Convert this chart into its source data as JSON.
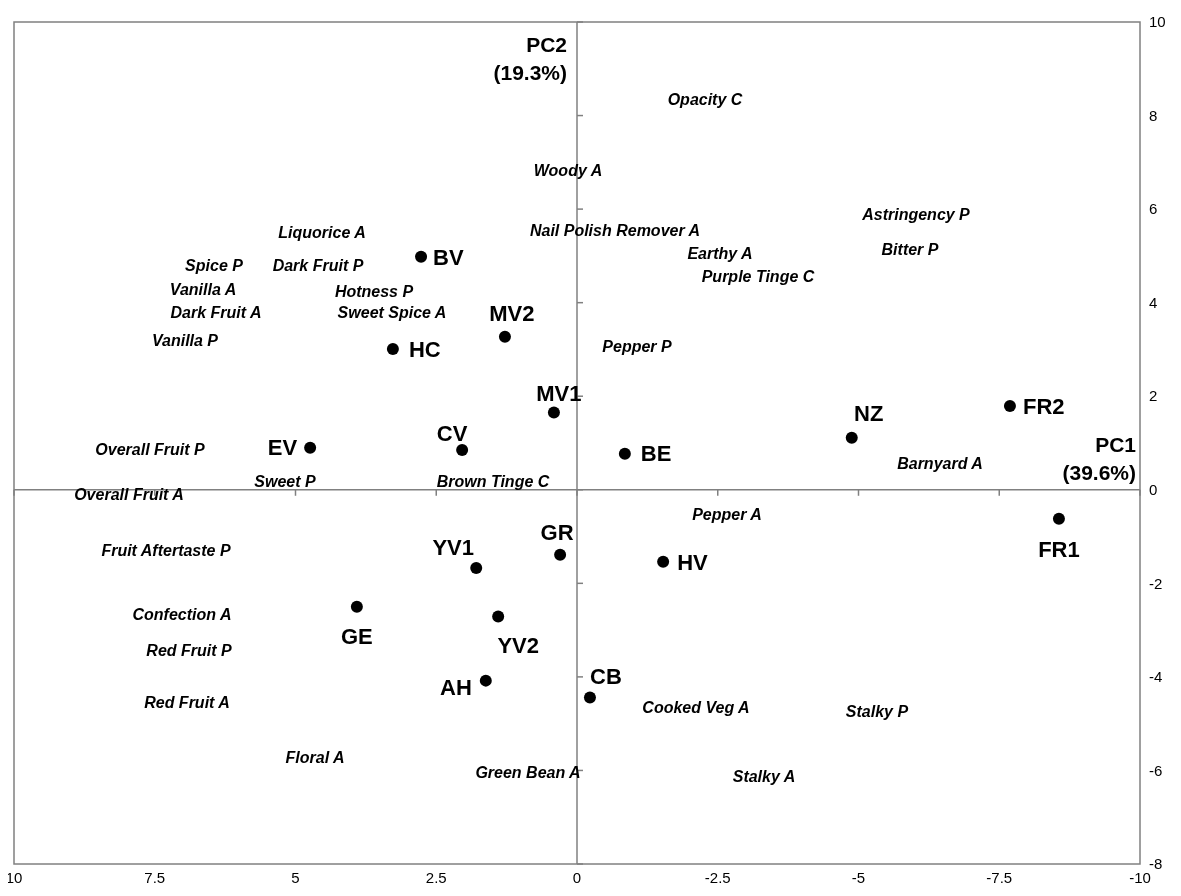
{
  "chart_data": {
    "type": "scatter",
    "xlabel": "PC1\n(39.6%)",
    "ylabel": "PC2\n(19.3%)",
    "xlim": [
      10,
      -10
    ],
    "xticks": [
      10,
      7.5,
      5,
      2.5,
      0,
      -2.5,
      -5,
      -7.5,
      -10
    ],
    "ylim": [
      -8,
      10
    ],
    "yticks": [
      -8,
      -6,
      -4,
      -2,
      0,
      2,
      4,
      6,
      8,
      10
    ],
    "marker": "circle",
    "series": [
      {
        "name": "BV",
        "color": "#000000",
        "x": [
          2.77
        ],
        "values": [
          4.98
        ]
      },
      {
        "name": "MV2",
        "color": "#000000",
        "x": [
          1.28
        ],
        "values": [
          3.27
        ]
      },
      {
        "name": "HC",
        "color": "#000000",
        "x": [
          3.27
        ],
        "values": [
          3.01
        ]
      },
      {
        "name": "MV1",
        "color": "#000000",
        "x": [
          0.41
        ],
        "values": [
          1.65
        ]
      },
      {
        "name": "EV",
        "color": "#000000",
        "x": [
          4.74
        ],
        "values": [
          0.9
        ]
      },
      {
        "name": "CV",
        "color": "#000000",
        "x": [
          2.04
        ],
        "values": [
          0.85
        ]
      },
      {
        "name": "BE",
        "color": "#000000",
        "x": [
          -0.85
        ],
        "values": [
          0.77
        ]
      },
      {
        "name": "NZ",
        "color": "#000000",
        "x": [
          -4.88
        ],
        "values": [
          1.11
        ]
      },
      {
        "name": "FR2",
        "color": "#000000",
        "x": [
          -7.69
        ],
        "values": [
          1.79
        ]
      },
      {
        "name": "FR1",
        "color": "#000000",
        "x": [
          -8.56
        ],
        "values": [
          -0.62
        ]
      },
      {
        "name": "GR",
        "color": "#000000",
        "x": [
          0.3
        ],
        "values": [
          -1.39
        ]
      },
      {
        "name": "YV1",
        "color": "#000000",
        "x": [
          1.79
        ],
        "values": [
          -1.67
        ]
      },
      {
        "name": "HV",
        "color": "#000000",
        "x": [
          -1.53
        ],
        "values": [
          -1.54
        ]
      },
      {
        "name": "GE",
        "color": "#000000",
        "x": [
          3.91
        ],
        "values": [
          -2.5
        ]
      },
      {
        "name": "YV2",
        "color": "#000000",
        "x": [
          1.4
        ],
        "values": [
          -2.71
        ]
      },
      {
        "name": "AH",
        "color": "#000000",
        "x": [
          1.62
        ],
        "values": [
          -4.08
        ]
      },
      {
        "name": "CB",
        "color": "#000000",
        "x": [
          -0.23
        ],
        "values": [
          -4.44
        ]
      }
    ],
    "annotations": [
      "Opacity C",
      "Woody A",
      "Liquorice A",
      "Nail Polish Remover A",
      "Astringency P",
      "Earthy A",
      "Bitter P",
      "Spice P",
      "Dark Fruit P",
      "Purple Tinge C",
      "Vanilla A",
      "Hotness P",
      "Dark Fruit A",
      "Sweet Spice A",
      "Vanilla P",
      "Pepper P",
      "Overall Fruit P",
      "Barnyard A",
      "Sweet P",
      "Brown Tinge C",
      "Overall Fruit A",
      "Pepper A",
      "Fruit Aftertaste P",
      "Confection A",
      "Red Fruit P",
      "Red Fruit A",
      "Cooked Veg A",
      "Stalky P",
      "Floral A",
      "Green Bean A",
      "Stalky A"
    ]
  }
}
